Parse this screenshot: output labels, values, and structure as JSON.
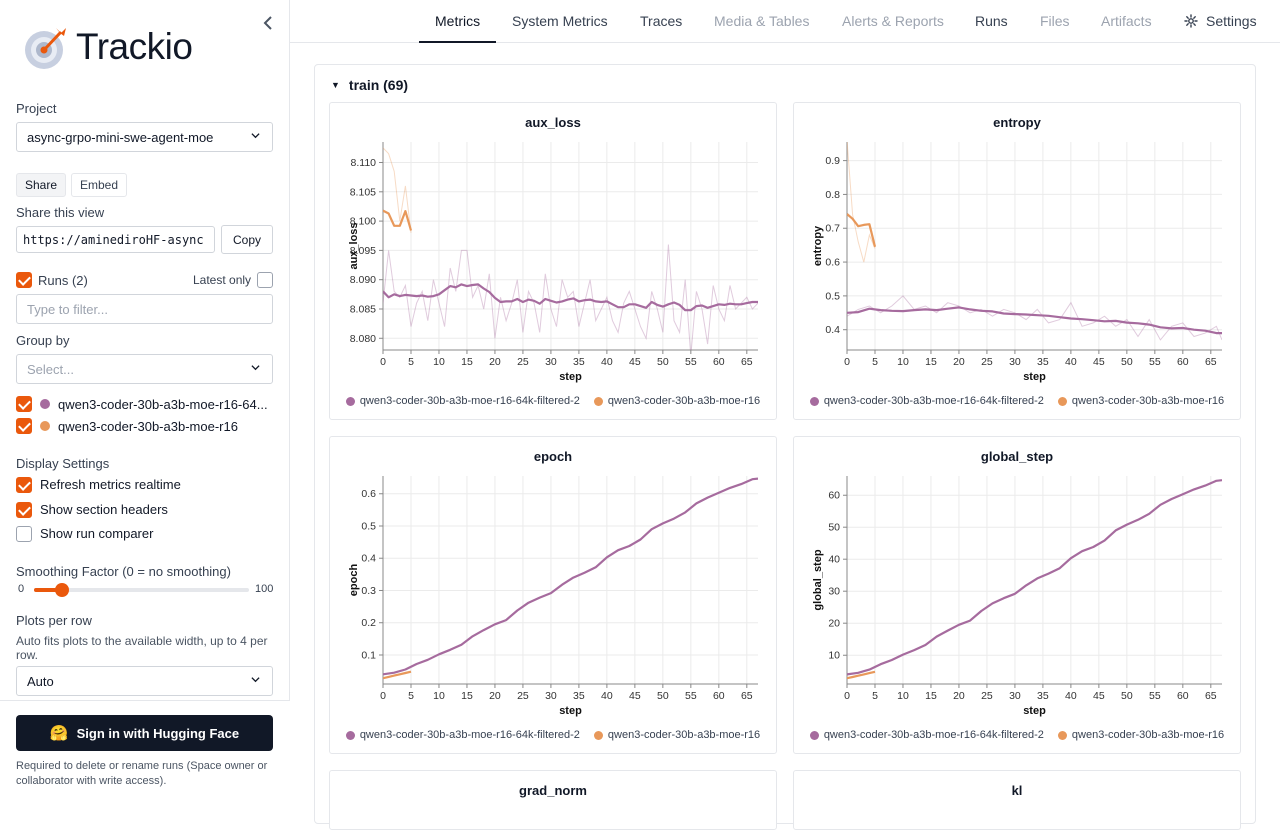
{
  "app": {
    "logo_text": "Trackio"
  },
  "sidebar": {
    "project_label": "Project",
    "project_value": "async-grpo-mini-swe-agent-moe",
    "share_label": "Share",
    "embed_label": "Embed",
    "share_view_label": "Share this view",
    "share_url": "https://aminediroHF-async",
    "copy_label": "Copy",
    "runs_label": "Runs (2)",
    "latest_only_label": "Latest only",
    "filter_placeholder": "Type to filter...",
    "group_by_label": "Group by",
    "group_by_placeholder": "Select...",
    "runs": [
      {
        "name": "qwen3-coder-30b-a3b-moe-r16-64...",
        "color": "#a66b9e",
        "checked": true
      },
      {
        "name": "qwen3-coder-30b-a3b-moe-r16",
        "color": "#e8985a",
        "checked": true
      }
    ],
    "display_settings_label": "Display Settings",
    "refresh_label": "Refresh metrics realtime",
    "section_headers_label": "Show section headers",
    "run_comparer_label": "Show run comparer",
    "smoothing_label": "Smoothing Factor (0 = no smoothing)",
    "smoothing_min": "0",
    "smoothing_max": "100",
    "smoothing_value": 10,
    "plots_per_row_label": "Plots per row",
    "plots_per_row_help": "Auto fits plots to the available width, up to 4 per row.",
    "plots_per_row_value": "Auto",
    "signin_label": "Sign in with Hugging Face",
    "signin_note": "Required to delete or rename runs (Space owner or collaborator with write access)."
  },
  "tabs": [
    {
      "label": "Metrics",
      "state": "active"
    },
    {
      "label": "System Metrics",
      "state": "normal"
    },
    {
      "label": "Traces",
      "state": "normal"
    },
    {
      "label": "Media & Tables",
      "state": "disabled"
    },
    {
      "label": "Alerts & Reports",
      "state": "disabled"
    },
    {
      "label": "Runs",
      "state": "normal"
    },
    {
      "label": "Files",
      "state": "disabled"
    },
    {
      "label": "Artifacts",
      "state": "disabled"
    }
  ],
  "settings_label": "Settings",
  "section": {
    "title": "train (69)"
  },
  "legend": [
    "qwen3-coder-30b-a3b-moe-r16-64k-filtered-2",
    "qwen3-coder-30b-a3b-moe-r16"
  ],
  "colors": {
    "run1": "#a66b9e",
    "run2": "#e8985a",
    "accent": "#ea580c"
  },
  "chart_data": [
    {
      "type": "line",
      "title": "aux_loss",
      "xlabel": "step",
      "ylabel": "aux_loss",
      "xlim": [
        0,
        67
      ],
      "ylim": [
        8.078,
        8.1135
      ],
      "xticks": [
        0,
        5,
        10,
        15,
        20,
        25,
        30,
        35,
        40,
        45,
        50,
        55,
        60,
        65
      ],
      "yticks": [
        8.08,
        8.085,
        8.09,
        8.095,
        8.1,
        8.105,
        8.11
      ],
      "ytick_labels": [
        "8.080",
        "8.085",
        "8.090",
        "8.095",
        "8.100",
        "8.105",
        "8.110"
      ],
      "series": [
        {
          "name": "qwen3-coder-30b-a3b-moe-r16-64k-filtered-2",
          "x": [
            0,
            1,
            2,
            3,
            4,
            5,
            6,
            7,
            8,
            9,
            10,
            11,
            12,
            13,
            14,
            15,
            16,
            17,
            18,
            19,
            20,
            21,
            22,
            23,
            24,
            25,
            26,
            27,
            28,
            29,
            30,
            31,
            32,
            33,
            34,
            35,
            36,
            37,
            38,
            39,
            40,
            41,
            42,
            43,
            44,
            45,
            46,
            47,
            48,
            49,
            50,
            51,
            52,
            53,
            54,
            55,
            56,
            57,
            58,
            59,
            60,
            61,
            62,
            63,
            64,
            65,
            66,
            67
          ],
          "values": [
            8.088,
            8.087,
            8.0875,
            8.0872,
            8.0874,
            8.0873,
            8.0872,
            8.0873,
            8.0871,
            8.0872,
            8.0875,
            8.0882,
            8.0889,
            8.0887,
            8.0892,
            8.0889,
            8.0891,
            8.0892,
            8.0885,
            8.0879,
            8.0869,
            8.0862,
            8.0863,
            8.0863,
            8.0867,
            8.0862,
            8.0866,
            8.0864,
            8.0859,
            8.0867,
            8.0864,
            8.0861,
            8.0863,
            8.0866,
            8.0868,
            8.0863,
            8.0865,
            8.0866,
            8.0863,
            8.0862,
            8.0863,
            8.0858,
            8.0853,
            8.0853,
            8.0858,
            8.0858,
            8.0855,
            8.0852,
            8.0862,
            8.0857,
            8.0854,
            8.0858,
            8.0861,
            8.0857,
            8.0848,
            8.0848,
            8.0855,
            8.0856,
            8.0852,
            8.0855,
            8.0858,
            8.0857,
            8.0859,
            8.0858,
            8.0858,
            8.086,
            8.0862,
            8.0862
          ],
          "raw": [
            8.086,
            8.095,
            8.088,
            8.087,
            8.089,
            8.082,
            8.086,
            8.088,
            8.083,
            8.09,
            8.086,
            8.082,
            8.092,
            8.088,
            8.095,
            8.095,
            8.087,
            8.089,
            8.085,
            8.091,
            8.08,
            8.087,
            8.083,
            8.086,
            8.09,
            8.081,
            8.088,
            8.086,
            8.081,
            8.091,
            8.085,
            8.082,
            8.09,
            8.087,
            8.088,
            8.082,
            8.086,
            8.09,
            8.083,
            8.085,
            8.087,
            8.083,
            8.081,
            8.086,
            8.088,
            8.085,
            8.082,
            8.08,
            8.088,
            8.085,
            8.081,
            8.096,
            8.083,
            8.081,
            8.09,
            8.077,
            8.088,
            8.085,
            8.079,
            8.089,
            8.085,
            8.083,
            8.089,
            8.085,
            8.086,
            8.087,
            8.085,
            8.086
          ]
        },
        {
          "name": "qwen3-coder-30b-a3b-moe-r16",
          "x": [
            0,
            1,
            2,
            3,
            4,
            5
          ],
          "values": [
            8.1018,
            8.1013,
            8.0992,
            8.0992,
            8.1017,
            8.0984
          ],
          "raw": [
            8.1125,
            8.1115,
            8.1085,
            8.1,
            8.106,
            8.098
          ]
        }
      ]
    },
    {
      "type": "line",
      "title": "entropy",
      "xlabel": "step",
      "ylabel": "entropy",
      "xlim": [
        0,
        67
      ],
      "ylim": [
        0.34,
        0.955
      ],
      "xticks": [
        0,
        5,
        10,
        15,
        20,
        25,
        30,
        35,
        40,
        45,
        50,
        55,
        60,
        65
      ],
      "yticks": [
        0.4,
        0.5,
        0.6,
        0.7,
        0.8,
        0.9
      ],
      "ytick_labels": [
        "0.4",
        "0.5",
        "0.6",
        "0.7",
        "0.8",
        "0.9"
      ],
      "series": [
        {
          "name": "qwen3-coder-30b-a3b-moe-r16-64k-filtered-2",
          "x": [
            0,
            2,
            4,
            6,
            8,
            10,
            12,
            14,
            16,
            18,
            20,
            22,
            24,
            26,
            28,
            30,
            32,
            34,
            36,
            38,
            40,
            42,
            44,
            46,
            48,
            50,
            52,
            54,
            56,
            58,
            60,
            62,
            64,
            66,
            67
          ],
          "values": [
            0.45,
            0.452,
            0.462,
            0.458,
            0.456,
            0.455,
            0.458,
            0.46,
            0.458,
            0.462,
            0.466,
            0.46,
            0.456,
            0.454,
            0.448,
            0.446,
            0.445,
            0.443,
            0.441,
            0.437,
            0.433,
            0.431,
            0.428,
            0.425,
            0.426,
            0.421,
            0.419,
            0.415,
            0.407,
            0.404,
            0.405,
            0.4,
            0.397,
            0.39,
            0.39
          ],
          "raw": [
            0.44,
            0.46,
            0.47,
            0.45,
            0.47,
            0.5,
            0.46,
            0.47,
            0.45,
            0.48,
            0.47,
            0.45,
            0.46,
            0.44,
            0.46,
            0.45,
            0.43,
            0.46,
            0.42,
            0.43,
            0.48,
            0.41,
            0.42,
            0.44,
            0.41,
            0.43,
            0.38,
            0.43,
            0.37,
            0.41,
            0.42,
            0.38,
            0.39,
            0.41,
            0.37
          ]
        },
        {
          "name": "qwen3-coder-30b-a3b-moe-r16",
          "x": [
            0,
            1,
            2,
            3,
            4,
            5
          ],
          "values": [
            0.742,
            0.728,
            0.706,
            0.71,
            0.712,
            0.645
          ],
          "raw": [
            0.96,
            0.74,
            0.66,
            0.6,
            0.68,
            0.64
          ]
        }
      ]
    },
    {
      "type": "line",
      "title": "epoch",
      "xlabel": "step",
      "ylabel": "epoch",
      "xlim": [
        0,
        67
      ],
      "ylim": [
        0.01,
        0.655
      ],
      "xticks": [
        0,
        5,
        10,
        15,
        20,
        25,
        30,
        35,
        40,
        45,
        50,
        55,
        60,
        65
      ],
      "yticks": [
        0.1,
        0.2,
        0.3,
        0.4,
        0.5,
        0.6
      ],
      "ytick_labels": [
        "0.1",
        "0.2",
        "0.3",
        "0.4",
        "0.5",
        "0.6"
      ],
      "series": [
        {
          "name": "qwen3-coder-30b-a3b-moe-r16-64k-filtered-2",
          "x": [
            0,
            2,
            4,
            6,
            8,
            10,
            12,
            14,
            16,
            18,
            20,
            22,
            24,
            26,
            28,
            30,
            32,
            34,
            36,
            38,
            40,
            42,
            44,
            46,
            48,
            50,
            52,
            54,
            56,
            58,
            60,
            62,
            64,
            66,
            67
          ],
          "values": [
            0.04,
            0.045,
            0.055,
            0.072,
            0.085,
            0.102,
            0.116,
            0.132,
            0.158,
            0.177,
            0.195,
            0.208,
            0.238,
            0.262,
            0.278,
            0.292,
            0.318,
            0.34,
            0.355,
            0.372,
            0.403,
            0.425,
            0.438,
            0.458,
            0.49,
            0.508,
            0.523,
            0.542,
            0.57,
            0.588,
            0.603,
            0.618,
            0.63,
            0.645,
            0.647
          ],
          "raw": []
        },
        {
          "name": "qwen3-coder-30b-a3b-moe-r16",
          "x": [
            0,
            1,
            2,
            3,
            4,
            5
          ],
          "values": [
            0.028,
            0.032,
            0.036,
            0.04,
            0.044,
            0.048
          ],
          "raw": []
        }
      ]
    },
    {
      "type": "line",
      "title": "global_step",
      "xlabel": "step",
      "ylabel": "global_step",
      "xlim": [
        0,
        67
      ],
      "ylim": [
        1,
        66
      ],
      "xticks": [
        0,
        5,
        10,
        15,
        20,
        25,
        30,
        35,
        40,
        45,
        50,
        55,
        60,
        65
      ],
      "yticks": [
        10,
        20,
        30,
        40,
        50,
        60
      ],
      "ytick_labels": [
        "10",
        "20",
        "30",
        "40",
        "50",
        "60"
      ],
      "series": [
        {
          "name": "qwen3-coder-30b-a3b-moe-r16-64k-filtered-2",
          "x": [
            0,
            2,
            4,
            6,
            8,
            10,
            12,
            14,
            16,
            18,
            20,
            22,
            24,
            26,
            28,
            30,
            32,
            34,
            36,
            38,
            40,
            42,
            44,
            46,
            48,
            50,
            52,
            54,
            56,
            58,
            60,
            62,
            64,
            66,
            67
          ],
          "values": [
            4,
            4.5,
            5.5,
            7.2,
            8.5,
            10.2,
            11.6,
            13.2,
            15.8,
            17.7,
            19.5,
            20.8,
            23.8,
            26.2,
            27.8,
            29.2,
            31.8,
            34,
            35.5,
            37.2,
            40.3,
            42.5,
            43.8,
            45.8,
            49,
            50.8,
            52.3,
            54.2,
            57,
            58.8,
            60.3,
            61.8,
            63,
            64.5,
            64.7
          ],
          "raw": []
        },
        {
          "name": "qwen3-coder-30b-a3b-moe-r16",
          "x": [
            0,
            1,
            2,
            3,
            4,
            5
          ],
          "values": [
            2.8,
            3.2,
            3.6,
            4,
            4.4,
            4.8
          ],
          "raw": []
        }
      ]
    },
    {
      "type": "line",
      "title": "grad_norm"
    },
    {
      "type": "line",
      "title": "kl"
    }
  ]
}
